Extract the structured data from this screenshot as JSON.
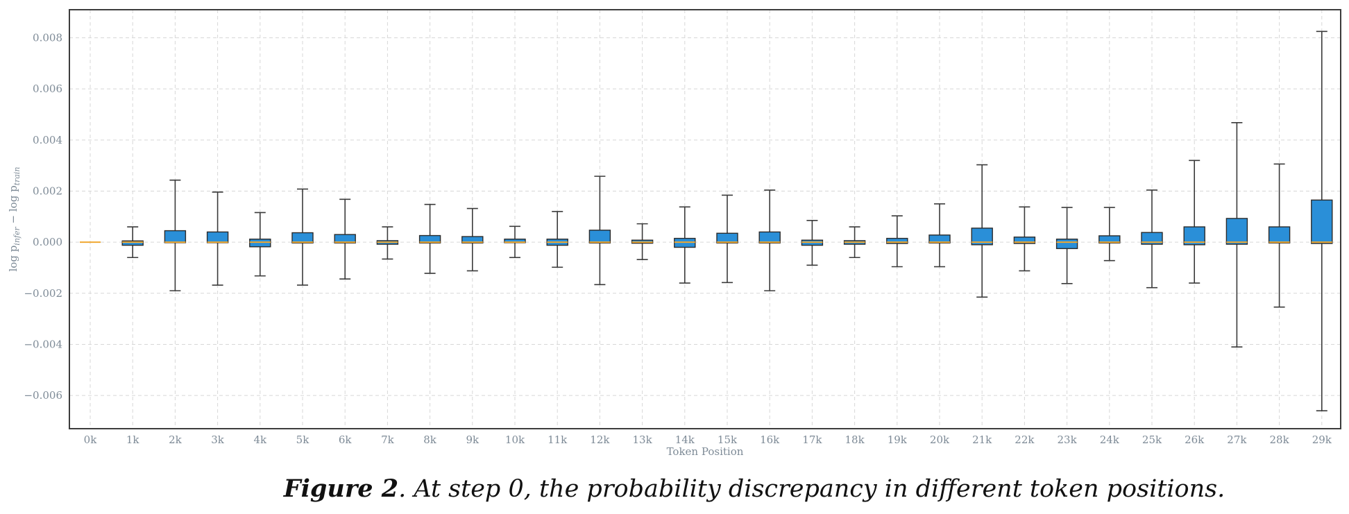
{
  "chart_data": {
    "type": "boxplot",
    "title": "",
    "xlabel": "Token Position",
    "ylabel": "log p_infer − log p_train",
    "ylabel_main": "log p",
    "ylabel_sub_infer": "infer",
    "ylabel_minus": " − log p",
    "ylabel_sub_train": "train",
    "ylim": [
      -0.0073,
      0.0091
    ],
    "yticks": [
      -0.006,
      -0.004,
      -0.002,
      0.0,
      0.002,
      0.004,
      0.006,
      0.008
    ],
    "ytick_labels": [
      "−0.006",
      "−0.004",
      "−0.002",
      "0.000",
      "0.002",
      "0.004",
      "0.006",
      "0.008"
    ],
    "grid": true,
    "box_color": "#2a8fd8",
    "median_color": "#f0a830",
    "categories": [
      "0k",
      "1k",
      "2k",
      "3k",
      "4k",
      "5k",
      "6k",
      "7k",
      "8k",
      "9k",
      "10k",
      "11k",
      "12k",
      "13k",
      "14k",
      "15k",
      "16k",
      "17k",
      "18k",
      "19k",
      "20k",
      "21k",
      "22k",
      "23k",
      "24k",
      "25k",
      "26k",
      "27k",
      "28k",
      "29k"
    ],
    "boxes": [
      {
        "q1": 0.0,
        "median": 0.0,
        "q3": 0.0,
        "whislo": 0.0,
        "whishi": 0.0
      },
      {
        "q1": -0.00012,
        "median": 0.0,
        "q3": 5e-05,
        "whislo": -0.0006,
        "whishi": 0.0006
      },
      {
        "q1": -2e-05,
        "median": 0.0,
        "q3": 0.00045,
        "whislo": -0.0019,
        "whishi": 0.00243
      },
      {
        "q1": -2e-05,
        "median": 0.0,
        "q3": 0.0004,
        "whislo": -0.00168,
        "whishi": 0.00196
      },
      {
        "q1": -0.00018,
        "median": 0.0,
        "q3": 0.00012,
        "whislo": -0.00132,
        "whishi": 0.00116
      },
      {
        "q1": -3e-05,
        "median": 0.0,
        "q3": 0.00037,
        "whislo": -0.00168,
        "whishi": 0.00208
      },
      {
        "q1": -3e-05,
        "median": 0.0,
        "q3": 0.0003,
        "whislo": -0.00144,
        "whishi": 0.00168
      },
      {
        "q1": -8e-05,
        "median": 0.0,
        "q3": 6e-05,
        "whislo": -0.00066,
        "whishi": 0.0006
      },
      {
        "q1": -3e-05,
        "median": 0.0,
        "q3": 0.00026,
        "whislo": -0.00122,
        "whishi": 0.00148
      },
      {
        "q1": -3e-05,
        "median": 0.0,
        "q3": 0.00022,
        "whislo": -0.00112,
        "whishi": 0.00132
      },
      {
        "q1": -2e-05,
        "median": 0.0,
        "q3": 0.00012,
        "whislo": -0.0006,
        "whishi": 0.00062
      },
      {
        "q1": -0.00012,
        "median": 0.0,
        "q3": 0.00012,
        "whislo": -0.00098,
        "whishi": 0.0012
      },
      {
        "q1": -3e-05,
        "median": 0.0,
        "q3": 0.00047,
        "whislo": -0.00166,
        "whishi": 0.00258
      },
      {
        "q1": -4e-05,
        "median": 0.0,
        "q3": 8e-05,
        "whislo": -0.00068,
        "whishi": 0.00072
      },
      {
        "q1": -0.0002,
        "median": 0.0,
        "q3": 0.00015,
        "whislo": -0.0016,
        "whishi": 0.00138
      },
      {
        "q1": -3e-05,
        "median": 0.0,
        "q3": 0.00035,
        "whislo": -0.00158,
        "whishi": 0.00184
      },
      {
        "q1": -3e-05,
        "median": 0.0,
        "q3": 0.0004,
        "whislo": -0.0019,
        "whishi": 0.00204
      },
      {
        "q1": -0.00012,
        "median": 0.0,
        "q3": 8e-05,
        "whislo": -0.0009,
        "whishi": 0.00085
      },
      {
        "q1": -8e-05,
        "median": 0.0,
        "q3": 6e-05,
        "whislo": -0.0006,
        "whishi": 0.0006
      },
      {
        "q1": -5e-05,
        "median": 0.0,
        "q3": 0.00015,
        "whislo": -0.00096,
        "whishi": 0.00103
      },
      {
        "q1": -3e-05,
        "median": 0.0,
        "q3": 0.00028,
        "whislo": -0.00096,
        "whishi": 0.0015
      },
      {
        "q1": -0.0001,
        "median": 0.0,
        "q3": 0.00055,
        "whislo": -0.00215,
        "whishi": 0.00303
      },
      {
        "q1": -5e-05,
        "median": 0.0,
        "q3": 0.0002,
        "whislo": -0.00112,
        "whishi": 0.00138
      },
      {
        "q1": -0.00025,
        "median": 0.0,
        "q3": 0.00012,
        "whislo": -0.00162,
        "whishi": 0.00136
      },
      {
        "q1": -3e-05,
        "median": 0.0,
        "q3": 0.00025,
        "whislo": -0.00072,
        "whishi": 0.00136
      },
      {
        "q1": -8e-05,
        "median": 0.0,
        "q3": 0.00038,
        "whislo": -0.00178,
        "whishi": 0.00204
      },
      {
        "q1": -0.0001,
        "median": 0.0,
        "q3": 0.0006,
        "whislo": -0.0016,
        "whishi": 0.0032
      },
      {
        "q1": -8e-05,
        "median": 0.0,
        "q3": 0.00093,
        "whislo": -0.0041,
        "whishi": 0.00468
      },
      {
        "q1": -3e-05,
        "median": 0.0,
        "q3": 0.0006,
        "whislo": -0.00254,
        "whishi": 0.00306
      },
      {
        "q1": -5e-05,
        "median": 0.0,
        "q3": 0.00165,
        "whislo": -0.0066,
        "whishi": 0.00825
      }
    ]
  },
  "caption": {
    "label": "Figure 2",
    "text": ". At step 0, the probability discrepancy in different token positions."
  }
}
